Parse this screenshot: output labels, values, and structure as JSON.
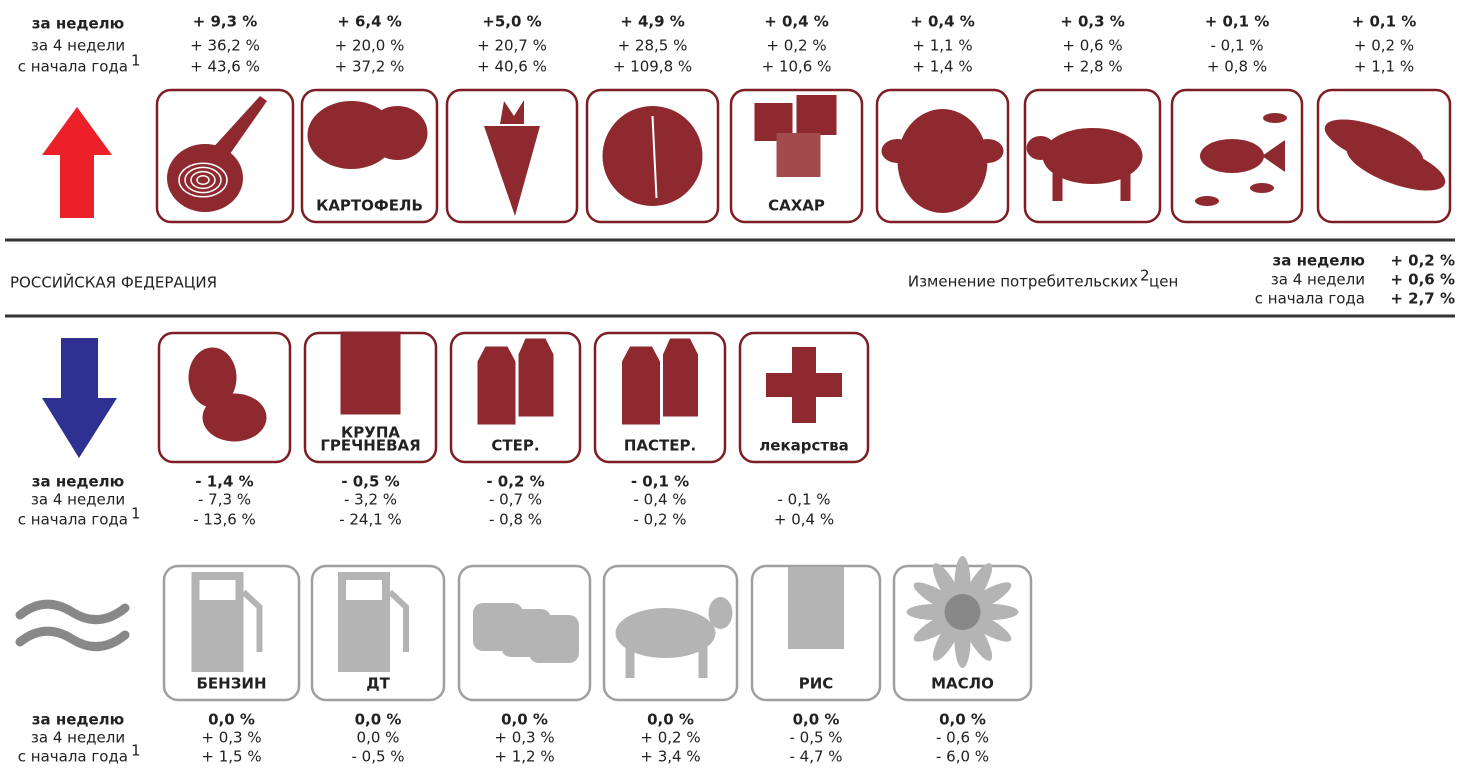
{
  "up": {
    "labels": {
      "week": "за неделю",
      "month": "за 4 недели",
      "ytd": "с начала года",
      "note": "1"
    },
    "items": [
      {
        "week": "+ 9,3 %",
        "month": "+ 36,2 %",
        "ytd": "+ 43,6 %"
      },
      {
        "week": "+ 6,4 %",
        "month": "+ 20,0 %",
        "ytd": "+ 37,2 %",
        "label": [
          "КАРТОФЕЛЬ"
        ]
      },
      {
        "week": "+5,0 %",
        "month": "+ 20,7 %",
        "ytd": "+ 40,6 %"
      },
      {
        "week": "+ 4,9 %",
        "month": "+ 28,5 %",
        "ytd": "+ 109,8 %"
      },
      {
        "week": "+ 0,4 %",
        "month": "+ 0,2 %",
        "ytd": "+ 10,6 %",
        "label": [
          "САХАР"
        ]
      },
      {
        "week": "+ 0,4 %",
        "month": "+ 1,1 %",
        "ytd": "+ 1,4 %"
      },
      {
        "week": "+ 0,3 %",
        "month": "+ 0,6 %",
        "ytd": "+ 2,8 %"
      },
      {
        "week": "+ 0,1 %",
        "month": "- 0,1 %",
        "ytd": "+ 0,8 %"
      },
      {
        "week": "+ 0,1 %",
        "month": "+ 0,2 %",
        "ytd": "+ 1,1 %"
      }
    ]
  },
  "middle": {
    "title": "РОССИЙСКАЯ ФЕДЕРАЦИЯ",
    "caption": "Изменение потребительских",
    "caption_note": "2",
    "caption_end": "цен",
    "labels": {
      "week": "за неделю",
      "month": "за 4 недели",
      "ytd": "с начала года"
    },
    "values": {
      "week": "+ 0,2 %",
      "month": "+ 0,6 %",
      "ytd": "+ 2,7 %"
    }
  },
  "down": {
    "labels": {
      "week": "за неделю",
      "month": "за 4 недели",
      "ytd": "с начала года",
      "note": "1"
    },
    "items": [
      {
        "week": "- 1,4 %",
        "month": "- 7,3 %",
        "ytd": "- 13,6 %"
      },
      {
        "week": "- 0,5 %",
        "month": "- 3,2 %",
        "ytd": "- 24,1 %",
        "label": [
          "КРУПА",
          "ГРЕЧНЕВАЯ"
        ]
      },
      {
        "week": "- 0,2 %",
        "month": "- 0,7 %",
        "ytd": "- 0,8 %",
        "label": [
          "СТЕР."
        ]
      },
      {
        "week": "- 0,1 %",
        "month": "- 0,4 %",
        "ytd": "- 0,2 %",
        "label": [
          "ПАСТЕР."
        ]
      },
      {
        "month": "- 0,1 %",
        "ytd": "+ 0,4 %",
        "label": [
          "лекарства"
        ]
      }
    ]
  },
  "stable": {
    "labels": {
      "week": "за неделю",
      "month": "за 4 недели",
      "ytd": "с начала года",
      "note": "1"
    },
    "items": [
      {
        "week": "0,0 %",
        "month": "+ 0,3 %",
        "ytd": "+ 1,5 %",
        "label": [
          "БЕНЗИН"
        ]
      },
      {
        "week": "0,0 %",
        "month": "0,0 %",
        "ytd": "- 0,5 %",
        "label": [
          "ДТ"
        ]
      },
      {
        "week": "0,0 %",
        "month": "+ 0,3 %",
        "ytd": "+ 1,2 %"
      },
      {
        "week": "0,0 %",
        "month": "+ 0,2 %",
        "ytd": "+ 3,4 %"
      },
      {
        "week": "0,0 %",
        "month": "- 0,5 %",
        "ytd": "- 4,7 %",
        "label": [
          "РИС"
        ]
      },
      {
        "week": "0,0 %",
        "month": "- 0,6 %",
        "ytd": "- 6,0 %",
        "label": [
          "МАСЛО"
        ]
      }
    ]
  }
}
